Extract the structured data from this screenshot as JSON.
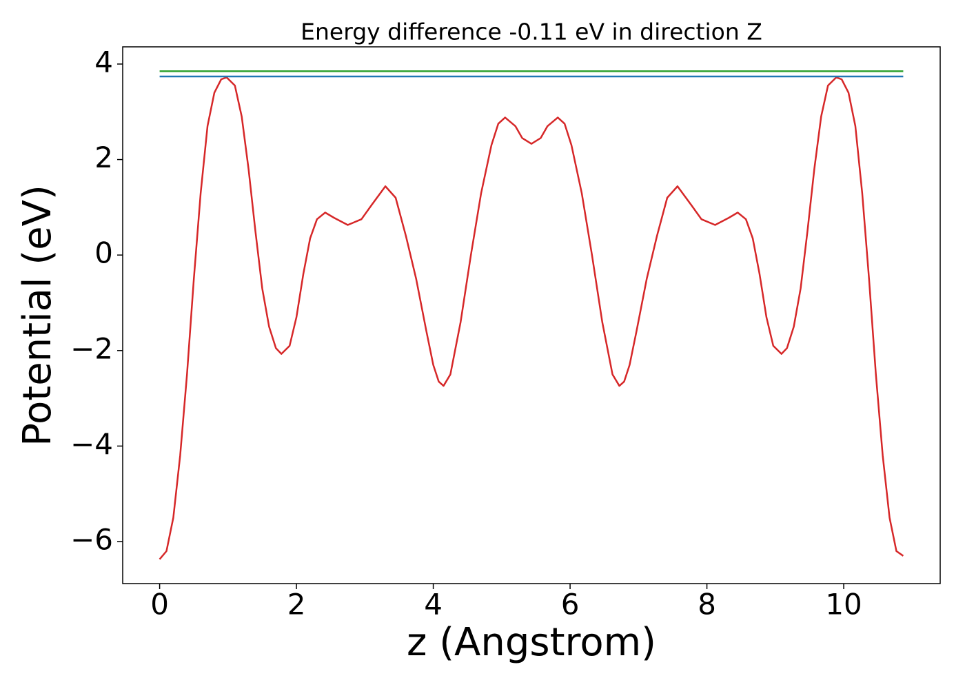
{
  "chart_data": {
    "type": "line",
    "title": "Energy difference -0.11 eV in direction Z",
    "xlabel": "z (Angstrom)",
    "ylabel": "Potential (eV)",
    "xlim": [
      -0.54,
      11.41
    ],
    "ylim": [
      -6.88,
      4.36
    ],
    "xticks": [
      0,
      2,
      4,
      6,
      8,
      10
    ],
    "yticks": [
      {
        "value": -6,
        "label": "−6"
      },
      {
        "value": -4,
        "label": "−4"
      },
      {
        "value": -2,
        "label": "−2"
      },
      0,
      2,
      4
    ],
    "series": [
      {
        "color": "#d62728",
        "x": [
          0,
          0.1,
          0.2,
          0.3,
          0.4,
          0.5,
          0.6,
          0.7,
          0.8,
          0.9,
          0.98,
          1.1,
          1.2,
          1.3,
          1.4,
          1.5,
          1.6,
          1.7,
          1.78,
          1.9,
          2.0,
          2.1,
          2.2,
          2.3,
          2.42,
          2.55,
          2.75,
          2.95,
          3.1,
          3.3,
          3.45,
          3.6,
          3.75,
          3.9,
          4.0,
          4.08,
          4.15,
          4.25,
          4.4,
          4.55,
          4.7,
          4.85,
          4.95,
          5.05,
          5.2,
          5.3,
          5.435,
          5.57,
          5.67,
          5.82,
          5.92,
          6.02,
          6.17,
          6.32,
          6.47,
          6.62,
          6.72,
          6.79,
          6.87,
          6.97,
          7.12,
          7.27,
          7.42,
          7.57,
          7.77,
          7.92,
          8.12,
          8.32,
          8.45,
          8.57,
          8.67,
          8.77,
          8.87,
          8.97,
          9.09,
          9.17,
          9.27,
          9.37,
          9.47,
          9.57,
          9.67,
          9.77,
          9.89,
          9.97,
          10.07,
          10.17,
          10.27,
          10.37,
          10.47,
          10.57,
          10.67,
          10.77,
          10.87
        ],
        "values": [
          -6.37,
          -6.2,
          -5.5,
          -4.2,
          -2.5,
          -0.5,
          1.3,
          2.7,
          3.4,
          3.68,
          3.72,
          3.55,
          2.9,
          1.8,
          0.5,
          -0.7,
          -1.5,
          -1.95,
          -2.07,
          -1.9,
          -1.3,
          -0.4,
          0.35,
          0.75,
          0.89,
          0.78,
          0.63,
          0.75,
          1.05,
          1.44,
          1.2,
          0.4,
          -0.5,
          -1.6,
          -2.3,
          -2.65,
          -2.74,
          -2.5,
          -1.4,
          0.0,
          1.3,
          2.3,
          2.75,
          2.88,
          2.7,
          2.45,
          2.33,
          2.45,
          2.7,
          2.88,
          2.75,
          2.3,
          1.3,
          0.0,
          -1.4,
          -2.5,
          -2.74,
          -2.65,
          -2.3,
          -1.6,
          -0.5,
          0.4,
          1.2,
          1.44,
          1.05,
          0.75,
          0.63,
          0.78,
          0.89,
          0.75,
          0.35,
          -0.4,
          -1.3,
          -1.9,
          -2.07,
          -1.95,
          -1.5,
          -0.7,
          0.5,
          1.8,
          2.9,
          3.55,
          3.72,
          3.68,
          3.4,
          2.7,
          1.3,
          -0.5,
          -2.5,
          -4.2,
          -5.5,
          -6.2,
          -6.3
        ]
      },
      {
        "color": "#2ca02c",
        "x": [
          0,
          10.87
        ],
        "values": [
          3.85,
          3.85
        ]
      },
      {
        "color": "#1f77b4",
        "x": [
          0,
          10.87
        ],
        "values": [
          3.74,
          3.74
        ]
      }
    ]
  }
}
